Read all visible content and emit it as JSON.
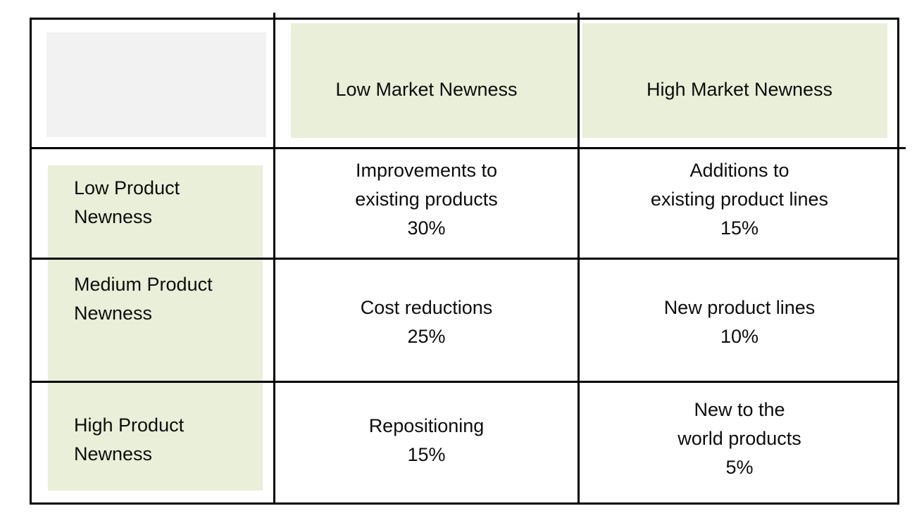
{
  "matrix": {
    "columns": [
      {
        "label": "Low Market Newness"
      },
      {
        "label": "High Market Newness"
      }
    ],
    "row_labels": [
      {
        "name": "Low Product Newness",
        "lines": [
          "Low Product",
          "Newness"
        ]
      },
      {
        "name": "Medium Product Newness",
        "lines": [
          "Medium Product",
          "Newness"
        ]
      },
      {
        "name": "High Product Newness",
        "lines": [
          "High Product",
          "Newness"
        ]
      }
    ],
    "cells": [
      [
        {
          "name": "Improvements to existing products",
          "lines": [
            "Improvements to",
            "existing products",
            "30%"
          ],
          "value_pct": 30
        },
        {
          "name": "Additions to existing product lines",
          "lines": [
            "Additions to",
            "existing product lines",
            "15%"
          ],
          "value_pct": 15
        }
      ],
      [
        {
          "name": "Cost reductions",
          "lines": [
            "Cost reductions",
            "25%"
          ],
          "value_pct": 25
        },
        {
          "name": "New product lines",
          "lines": [
            "New product lines",
            "10%"
          ],
          "value_pct": 10
        }
      ],
      [
        {
          "name": "Repositioning",
          "lines": [
            "Repositioning",
            "15%"
          ],
          "value_pct": 15
        },
        {
          "name": "New to the world products",
          "lines": [
            "New to the",
            "world products",
            "5%"
          ],
          "value_pct": 5
        }
      ]
    ]
  },
  "colors": {
    "highlight_green": "#e9efd8",
    "corner_gray": "#f2f2f2",
    "border_black": "#000000",
    "background": "#ffffff"
  },
  "chart_data": {
    "type": "table",
    "columns": [
      "",
      "Low Market Newness",
      "High Market Newness"
    ],
    "rows": [
      [
        "Low Product Newness",
        "Improvements to existing products 30%",
        "Additions to existing product lines 15%"
      ],
      [
        "Medium Product Newness",
        "Cost reductions 25%",
        "New product lines 10%"
      ],
      [
        "High Product Newness",
        "Repositioning 15%",
        "New to the world products 5%"
      ]
    ],
    "values_pct": [
      [
        30,
        15
      ],
      [
        25,
        10
      ],
      [
        15,
        5
      ]
    ]
  }
}
